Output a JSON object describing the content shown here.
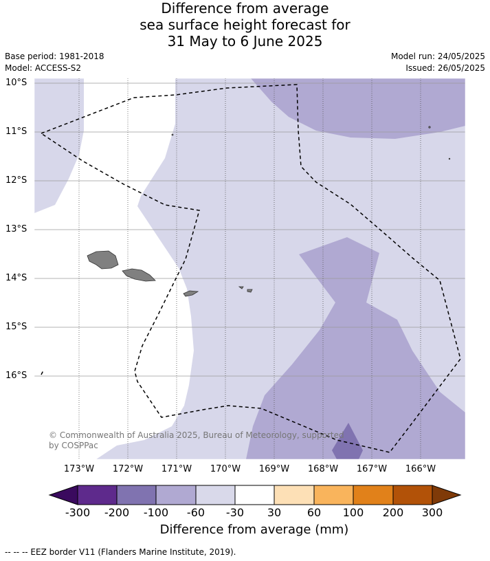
{
  "title": {
    "line1": "Difference from average",
    "line2": "sea surface height forecast for",
    "line3": "31 May to 6 June 2025"
  },
  "meta": {
    "base_period": "Base period: 1981-2018",
    "model": "Model: ACCESS-S2",
    "model_run": "Model run: 24/05/2025",
    "issued": "Issued: 26/05/2025"
  },
  "map": {
    "lat_labels": [
      "10°S",
      "11°S",
      "12°S",
      "13°S",
      "14°S",
      "15°S",
      "16°S"
    ],
    "lon_labels": [
      "173°W",
      "172°W",
      "171°W",
      "170°W",
      "169°W",
      "168°W",
      "167°W",
      "166°W"
    ],
    "copyright": "© Commonwealth of Australia 2025, Bureau of Meteorology, supported by COSPPac",
    "colors": {
      "level_m60_m30": "#d7d7ea",
      "level_m100_m60": "#b0a9d2",
      "level_m200_m100": "#7f73b2",
      "eez_border": "#000000"
    }
  },
  "colorbar": {
    "ticks": [
      "-300",
      "-200",
      "-100",
      "-60",
      "-30",
      "30",
      "60",
      "100",
      "200",
      "300"
    ],
    "label": "Difference from average (mm)",
    "colors": [
      "#3a0a5e",
      "#5e2a8c",
      "#8073b0",
      "#b0a9d2",
      "#d9d9ea",
      "#ffffff",
      "#fde0b6",
      "#f9b45c",
      "#e1811a",
      "#b25208",
      "#7f3a08"
    ]
  },
  "legend": {
    "eez_text": "--  --  -- EEZ border V11 (Flanders Marine Institute, 2019)."
  }
}
